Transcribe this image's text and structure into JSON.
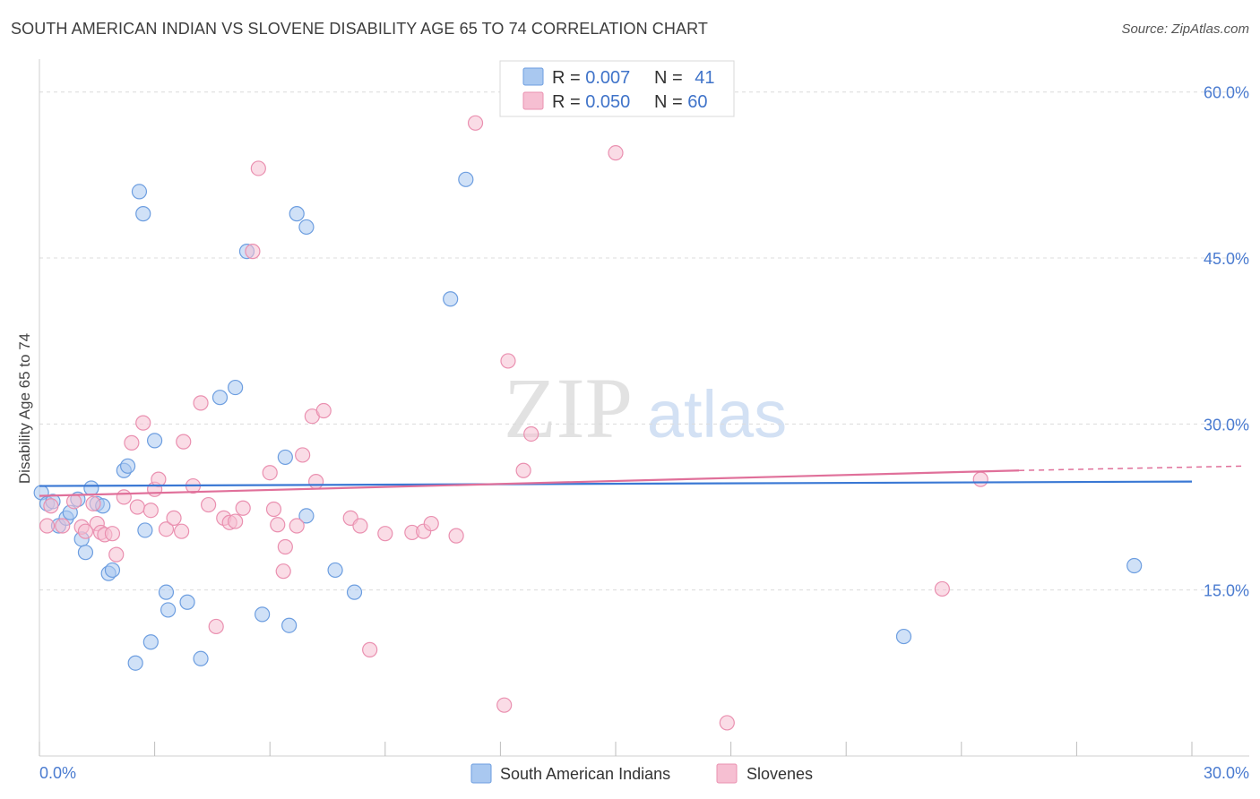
{
  "header": {
    "title": "SOUTH AMERICAN INDIAN VS SLOVENE DISABILITY AGE 65 TO 74 CORRELATION CHART",
    "source": "Source: ZipAtlas.com"
  },
  "watermark": {
    "zip": "ZIP",
    "atlas": "atlas"
  },
  "legend_box": {
    "rows": [
      {
        "r_label": "R = ",
        "r_value": "0.007",
        "n_label": "N = ",
        "n_value": "41"
      },
      {
        "r_label": "R = ",
        "r_value": "0.050",
        "n_label": "N = ",
        "n_value": "60"
      }
    ]
  },
  "bottom_legend": {
    "items": [
      "South American Indians",
      "Slovenes"
    ]
  },
  "chart_data": {
    "type": "scatter",
    "title": "SOUTH AMERICAN INDIAN VS SLOVENE DISABILITY AGE 65 TO 74 CORRELATION CHART",
    "xlabel": "",
    "ylabel": "Disability Age 65 to 74",
    "xlim": [
      0,
      30
    ],
    "ylim": [
      0,
      62
    ],
    "x_tick_labels": [
      "0.0%",
      "30.0%"
    ],
    "y_ticks": [
      15,
      30,
      45,
      60
    ],
    "y_tick_labels": [
      "15.0%",
      "30.0%",
      "45.0%",
      "60.0%"
    ],
    "grid": true,
    "colors": {
      "blue_fill": "#a9c8f0",
      "blue_stroke": "#6d9ee0",
      "blue_line": "#3a78d4",
      "pink_fill": "#f6bfd2",
      "pink_stroke": "#ea90b0",
      "pink_line": "#e0709a"
    },
    "series": [
      {
        "name": "South American Indians",
        "r": 0.007,
        "n": 41,
        "trend": {
          "x": [
            0,
            30
          ],
          "y": [
            24.4,
            24.8
          ]
        },
        "points": [
          [
            0.05,
            23.8
          ],
          [
            0.2,
            22.8
          ],
          [
            0.35,
            23.0
          ],
          [
            0.5,
            20.8
          ],
          [
            0.7,
            21.5
          ],
          [
            0.8,
            22.0
          ],
          [
            1.0,
            23.2
          ],
          [
            1.1,
            19.6
          ],
          [
            1.2,
            18.4
          ],
          [
            1.35,
            24.2
          ],
          [
            1.5,
            22.8
          ],
          [
            1.65,
            22.6
          ],
          [
            1.8,
            16.5
          ],
          [
            1.9,
            16.8
          ],
          [
            2.2,
            25.8
          ],
          [
            2.3,
            26.2
          ],
          [
            2.5,
            8.4
          ],
          [
            2.6,
            51.0
          ],
          [
            2.7,
            49.0
          ],
          [
            2.75,
            20.4
          ],
          [
            2.9,
            10.3
          ],
          [
            3.0,
            28.5
          ],
          [
            3.3,
            14.8
          ],
          [
            3.35,
            13.2
          ],
          [
            3.85,
            13.9
          ],
          [
            4.2,
            8.8
          ],
          [
            4.7,
            32.4
          ],
          [
            5.1,
            33.3
          ],
          [
            5.4,
            45.6
          ],
          [
            5.8,
            12.8
          ],
          [
            6.4,
            27.0
          ],
          [
            6.5,
            11.8
          ],
          [
            6.7,
            49.0
          ],
          [
            6.95,
            47.8
          ],
          [
            6.95,
            21.7
          ],
          [
            7.7,
            16.8
          ],
          [
            8.2,
            14.8
          ],
          [
            10.7,
            41.3
          ],
          [
            11.1,
            52.1
          ],
          [
            22.5,
            10.8
          ],
          [
            28.5,
            17.2
          ]
        ]
      },
      {
        "name": "Slovenes",
        "r": 0.05,
        "n": 60,
        "trend": {
          "x": [
            0,
            25.5
          ],
          "y": [
            23.5,
            25.8
          ]
        },
        "trend_dashed": {
          "x": [
            25.5,
            30
          ],
          "y": [
            25.8,
            26.2
          ]
        },
        "points": [
          [
            0.2,
            20.8
          ],
          [
            0.3,
            22.6
          ],
          [
            0.6,
            20.8
          ],
          [
            0.9,
            23.0
          ],
          [
            1.1,
            20.7
          ],
          [
            1.2,
            20.3
          ],
          [
            1.4,
            22.8
          ],
          [
            1.5,
            21.0
          ],
          [
            1.6,
            20.2
          ],
          [
            1.7,
            20.0
          ],
          [
            1.9,
            20.1
          ],
          [
            2.0,
            18.2
          ],
          [
            2.2,
            23.4
          ],
          [
            2.4,
            28.3
          ],
          [
            2.55,
            22.5
          ],
          [
            2.7,
            30.1
          ],
          [
            2.9,
            22.2
          ],
          [
            3.0,
            24.1
          ],
          [
            3.1,
            25.0
          ],
          [
            3.3,
            20.5
          ],
          [
            3.5,
            21.5
          ],
          [
            3.7,
            20.3
          ],
          [
            3.75,
            28.4
          ],
          [
            4.0,
            24.4
          ],
          [
            4.2,
            31.9
          ],
          [
            4.4,
            22.7
          ],
          [
            4.6,
            11.7
          ],
          [
            4.8,
            21.5
          ],
          [
            4.95,
            21.1
          ],
          [
            5.1,
            21.2
          ],
          [
            5.3,
            22.4
          ],
          [
            5.55,
            45.6
          ],
          [
            5.7,
            53.1
          ],
          [
            6.0,
            25.6
          ],
          [
            6.1,
            22.3
          ],
          [
            6.2,
            20.9
          ],
          [
            6.4,
            18.9
          ],
          [
            6.35,
            16.7
          ],
          [
            6.7,
            20.8
          ],
          [
            6.85,
            27.2
          ],
          [
            7.1,
            30.7
          ],
          [
            7.2,
            24.8
          ],
          [
            7.4,
            31.2
          ],
          [
            8.1,
            21.5
          ],
          [
            8.35,
            20.8
          ],
          [
            8.6,
            9.6
          ],
          [
            9.0,
            20.1
          ],
          [
            9.7,
            20.2
          ],
          [
            10.0,
            20.3
          ],
          [
            10.2,
            21.0
          ],
          [
            10.85,
            19.9
          ],
          [
            11.35,
            57.2
          ],
          [
            12.1,
            4.6
          ],
          [
            12.2,
            35.7
          ],
          [
            12.6,
            25.8
          ],
          [
            12.8,
            29.1
          ],
          [
            15.0,
            54.5
          ],
          [
            17.9,
            3.0
          ],
          [
            23.5,
            15.1
          ],
          [
            24.5,
            25.0
          ]
        ]
      }
    ]
  }
}
